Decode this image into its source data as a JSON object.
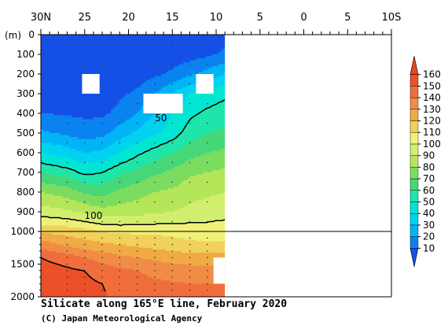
{
  "chart_data": {
    "type": "heatmap",
    "title": "Silicate along 165°E line, February 2020",
    "credit": "(C) Japan Meteorological Agency",
    "ylabel": "(m)",
    "x_axis": {
      "range": [
        30,
        -10
      ],
      "ticks": [
        {
          "value": 30,
          "label": "30N"
        },
        {
          "value": 25,
          "label": "25"
        },
        {
          "value": 20,
          "label": "20"
        },
        {
          "value": 15,
          "label": "15"
        },
        {
          "value": 10,
          "label": "10"
        },
        {
          "value": 5,
          "label": "5"
        },
        {
          "value": 0,
          "label": "0"
        },
        {
          "value": -5,
          "label": "5"
        },
        {
          "value": -10,
          "label": "10S"
        }
      ]
    },
    "y_axis": {
      "upper_range": [
        0,
        1000
      ],
      "lower_range": [
        1000,
        2000
      ],
      "tick_labels": [
        "0",
        "100",
        "200",
        "300",
        "400",
        "500",
        "600",
        "700",
        "800",
        "900",
        "1000",
        "1500",
        "2000"
      ]
    },
    "data_extent_lat": [
      30,
      9
    ],
    "contour_labels": [
      {
        "text": "50",
        "lat": 16.3,
        "depth": 440
      },
      {
        "text": "100",
        "lat": 24.0,
        "depth": 935
      }
    ],
    "colorbar": {
      "levels": [
        10,
        20,
        30,
        40,
        50,
        60,
        70,
        80,
        90,
        100,
        110,
        120,
        130,
        140,
        150,
        160
      ],
      "colors": [
        "#1450e6",
        "#0a82f0",
        "#00b4f5",
        "#00d2f0",
        "#00e6d2",
        "#1ee6aa",
        "#46d778",
        "#7cdc5f",
        "#b4e65a",
        "#d2ee6e",
        "#f0f078",
        "#f0d25a",
        "#f0aa46",
        "#f08c46",
        "#f06e3c",
        "#eb5028",
        "#e6461e"
      ]
    },
    "sections": [
      {
        "depths": [
          0,
          100,
          200,
          300,
          400,
          500,
          600,
          700,
          800,
          900,
          1000
        ],
        "lats": [
          30,
          27,
          25,
          23,
          21,
          19,
          17,
          15,
          13,
          11,
          9
        ],
        "values": [
          [
            3,
            3,
            3,
            3,
            3,
            3,
            3,
            3,
            3,
            4,
            5
          ],
          [
            3,
            3,
            3,
            3,
            3,
            3,
            4,
            4,
            6,
            8,
            12
          ],
          [
            3,
            3,
            3,
            3,
            4,
            5,
            8,
            12,
            18,
            24,
            30
          ],
          [
            4,
            4,
            5,
            5,
            8,
            12,
            20,
            30,
            40,
            45,
            48
          ],
          [
            10,
            9,
            8,
            8,
            13,
            20,
            30,
            40,
            48,
            52,
            55
          ],
          [
            22,
            18,
            15,
            17,
            25,
            32,
            38,
            45,
            55,
            60,
            62
          ],
          [
            40,
            35,
            30,
            32,
            40,
            48,
            55,
            60,
            66,
            70,
            72
          ],
          [
            60,
            55,
            48,
            50,
            58,
            63,
            68,
            72,
            78,
            80,
            82
          ],
          [
            80,
            75,
            68,
            66,
            72,
            76,
            80,
            82,
            86,
            88,
            90
          ],
          [
            95,
            92,
            88,
            84,
            85,
            86,
            88,
            90,
            93,
            95,
            97
          ],
          [
            118,
            116,
            114,
            110,
            108,
            108,
            108,
            107,
            106,
            105,
            105
          ]
        ]
      },
      {
        "depths": [
          1000,
          1200,
          1400,
          1600,
          1800,
          2000
        ],
        "lats": [
          30,
          27,
          25,
          23,
          21,
          19,
          17,
          15,
          13,
          11,
          9
        ],
        "values": [
          [
            118,
            116,
            114,
            110,
            108,
            108,
            108,
            107,
            106,
            105,
            105
          ],
          [
            135,
            128,
            124,
            122,
            120,
            118,
            116,
            114,
            112,
            112,
            112
          ],
          [
            150,
            145,
            140,
            136,
            132,
            130,
            128,
            126,
            125,
            124,
            124
          ],
          [
            155,
            152,
            150,
            146,
            142,
            140,
            137,
            135,
            134,
            133,
            133
          ],
          [
            158,
            156,
            152,
            150,
            146,
            144,
            142,
            141,
            140,
            140,
            140
          ],
          [
            160,
            158,
            153,
            151,
            148,
            146,
            145,
            144,
            143,
            143,
            143
          ]
        ]
      }
    ],
    "missing_boxes": [
      {
        "lat": [
          25.3,
          23.3
        ],
        "depth": [
          200,
          300
        ]
      },
      {
        "lat": [
          18.3,
          13.8
        ],
        "depth": [
          300,
          400
        ]
      },
      {
        "lat": [
          12.3,
          10.3
        ],
        "depth": [
          200,
          300
        ]
      },
      {
        "lat": [
          10.3,
          9.0
        ],
        "depth": [
          1400,
          1800
        ]
      }
    ]
  }
}
